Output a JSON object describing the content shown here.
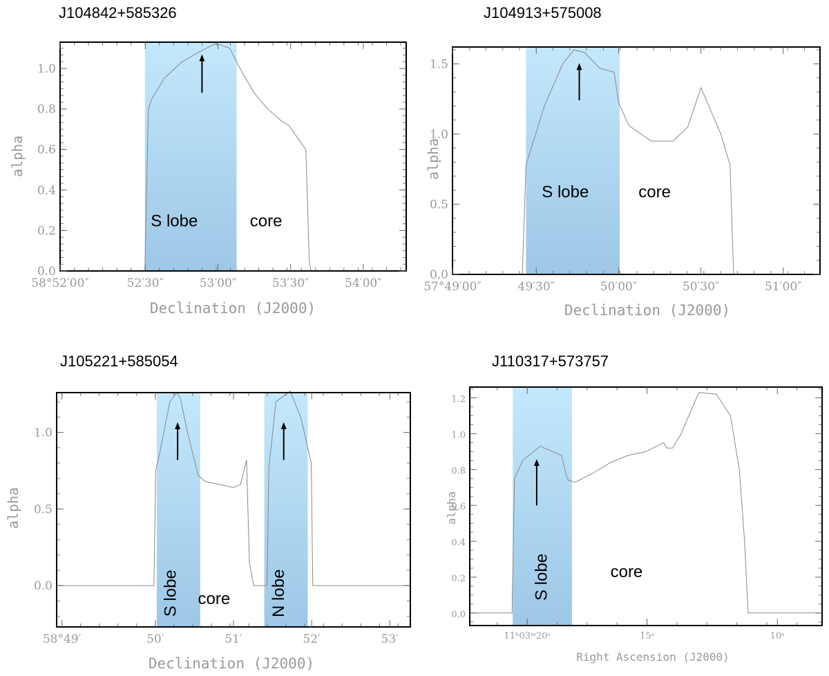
{
  "colors": {
    "band_top": "#c4e8fc",
    "band_bottom": "#9dc7e6",
    "curve": "#888888",
    "axis_text": "#999999"
  },
  "chart_data": [
    {
      "type": "line",
      "title": "J104842+585326",
      "ylabel": "alpha",
      "xlabel": "Declination (J2000)",
      "xlim": [
        0,
        1
      ],
      "ylim": [
        0,
        1.13
      ],
      "yticks": [
        0.0,
        0.2,
        0.4,
        0.6,
        0.8,
        1.0
      ],
      "ytick_labels": [
        "0.0",
        "0.2",
        "0.4",
        "0.6",
        "0.8",
        "1.0"
      ],
      "xticks": [
        0.0,
        0.246,
        0.456,
        0.666,
        0.876
      ],
      "xtick_labels": [
        "58°52′00″",
        "52′30″",
        "53′00″",
        "53′30″",
        "54′00″"
      ],
      "series": [
        {
          "x": [
            0.245,
            0.255,
            0.265,
            0.3,
            0.35,
            0.4,
            0.445,
            0.456,
            0.49,
            0.52,
            0.56,
            0.6,
            0.64,
            0.66,
            0.71,
            0.72,
            0.725
          ],
          "y": [
            0.0,
            0.8,
            0.85,
            0.95,
            1.03,
            1.08,
            1.12,
            1.12,
            1.1,
            1.0,
            0.88,
            0.8,
            0.74,
            0.72,
            0.6,
            0.05,
            0.0
          ]
        }
      ],
      "bands": [
        {
          "x0": 0.245,
          "x1": 0.51
        }
      ],
      "arrows": [
        {
          "x": 0.41,
          "y_from": 0.88,
          "y_to": 1.08
        }
      ],
      "annotations": [
        {
          "text": "S lobe",
          "x": 0.33,
          "y": 0.22,
          "rotate": false
        },
        {
          "text": "core",
          "x": 0.595,
          "y": 0.22,
          "rotate": false
        }
      ]
    },
    {
      "type": "line",
      "title": "J104913+575008",
      "ylabel": "alpha",
      "xlabel": "Declination (J2000)",
      "xlim": [
        0,
        1
      ],
      "ylim": [
        0,
        1.62
      ],
      "yticks": [
        0.0,
        0.5,
        1.0,
        1.5
      ],
      "ytick_labels": [
        "0.0",
        "0.5",
        "1.0",
        "1.5"
      ],
      "xticks": [
        0.0,
        0.228,
        0.452,
        0.676,
        0.9
      ],
      "xtick_labels": [
        "57°49′00″",
        "49′30″",
        "50′00″",
        "50′30″",
        "51′00″"
      ],
      "series": [
        {
          "x": [
            0.19,
            0.2,
            0.25,
            0.3,
            0.33,
            0.36,
            0.4,
            0.44,
            0.452,
            0.48,
            0.54,
            0.6,
            0.64,
            0.676,
            0.73,
            0.755,
            0.765
          ],
          "y": [
            0.0,
            0.78,
            1.2,
            1.5,
            1.6,
            1.58,
            1.47,
            1.44,
            1.22,
            1.06,
            0.95,
            0.95,
            1.05,
            1.33,
            1.0,
            0.78,
            0.0
          ]
        }
      ],
      "bands": [
        {
          "x0": 0.2,
          "x1": 0.455
        }
      ],
      "arrows": [
        {
          "x": 0.345,
          "y_from": 1.24,
          "y_to": 1.52
        }
      ],
      "annotations": [
        {
          "text": "S lobe",
          "x": 0.307,
          "y": 0.55,
          "rotate": false
        },
        {
          "text": "core",
          "x": 0.55,
          "y": 0.55,
          "rotate": false
        }
      ]
    },
    {
      "type": "line",
      "title": "J105221+585054",
      "ylabel": "alpha",
      "xlabel": "Declination (J2000)",
      "xlim": [
        0,
        1
      ],
      "ylim": [
        -0.27,
        1.26
      ],
      "yticks": [
        0.0,
        0.5,
        1.0
      ],
      "ytick_labels": [
        "0.0",
        "0.5",
        "1.0"
      ],
      "xticks": [
        0.015,
        0.279,
        0.5,
        0.721,
        0.942
      ],
      "xtick_labels": [
        "58°49′",
        "50′",
        "51′",
        "52′",
        "53′"
      ],
      "series": [
        {
          "x": [
            0.0,
            0.275,
            0.28,
            0.29,
            0.32,
            0.34,
            0.35,
            0.37,
            0.4,
            0.42,
            0.46,
            0.5,
            0.52,
            0.537,
            0.545,
            0.557,
            0.595,
            0.6,
            0.62,
            0.66,
            0.69,
            0.72,
            0.724,
            1.0
          ],
          "y": [
            0.0,
            0.0,
            0.75,
            0.85,
            1.2,
            1.26,
            1.22,
            1.0,
            0.72,
            0.68,
            0.66,
            0.64,
            0.66,
            0.82,
            0.15,
            0.0,
            0.0,
            0.77,
            1.2,
            1.27,
            1.1,
            0.8,
            0.0,
            0.0
          ]
        }
      ],
      "bands": [
        {
          "x0": 0.283,
          "x1": 0.406
        },
        {
          "x0": 0.587,
          "x1": 0.71
        }
      ],
      "arrows": [
        {
          "x": 0.342,
          "y_from": 0.82,
          "y_to": 1.08
        },
        {
          "x": 0.642,
          "y_from": 0.82,
          "y_to": 1.08
        }
      ],
      "annotations": [
        {
          "text": "S lobe",
          "x": 0.325,
          "y": -0.05,
          "rotate": true
        },
        {
          "text": "core",
          "x": 0.445,
          "y": -0.12,
          "rotate": false
        },
        {
          "text": "N lobe",
          "x": 0.63,
          "y": -0.05,
          "rotate": true
        }
      ]
    },
    {
      "type": "line",
      "title": "J110317+573757",
      "ylabel": "alpha",
      "xlabel": "Right Ascension (J2000)",
      "xlim": [
        0,
        1
      ],
      "ylim": [
        -0.07,
        1.26
      ],
      "yticks": [
        0.0,
        0.2,
        0.4,
        0.6,
        0.8,
        1.0,
        1.2
      ],
      "ytick_labels": [
        "0.0",
        "0.2",
        "0.4",
        "0.6",
        "0.8",
        "1.0",
        "1.2"
      ],
      "xticks": [
        0.163,
        0.503,
        0.873
      ],
      "xtick_labels": [
        "11ʰ03ᵐ20ˢ",
        "15ˢ",
        "10ˢ"
      ],
      "series": [
        {
          "x": [
            0.0,
            0.12,
            0.127,
            0.15,
            0.2,
            0.235,
            0.26,
            0.275,
            0.28,
            0.3,
            0.35,
            0.4,
            0.45,
            0.5,
            0.55,
            0.56,
            0.575,
            0.6,
            0.65,
            0.7,
            0.74,
            0.765,
            0.78,
            0.79,
            1.0
          ],
          "y": [
            0.0,
            0.0,
            0.75,
            0.85,
            0.93,
            0.9,
            0.88,
            0.76,
            0.74,
            0.73,
            0.78,
            0.84,
            0.88,
            0.9,
            0.95,
            0.92,
            0.92,
            1.0,
            1.23,
            1.22,
            1.1,
            0.8,
            0.4,
            0.0,
            0.0
          ]
        }
      ],
      "bands": [
        {
          "x0": 0.122,
          "x1": 0.29
        }
      ],
      "arrows": [
        {
          "x": 0.19,
          "y_from": 0.6,
          "y_to": 0.87
        }
      ],
      "annotations": [
        {
          "text": "S lobe",
          "x": 0.206,
          "y": 0.2,
          "rotate": true
        },
        {
          "text": "core",
          "x": 0.445,
          "y": 0.2,
          "rotate": false
        }
      ]
    }
  ]
}
